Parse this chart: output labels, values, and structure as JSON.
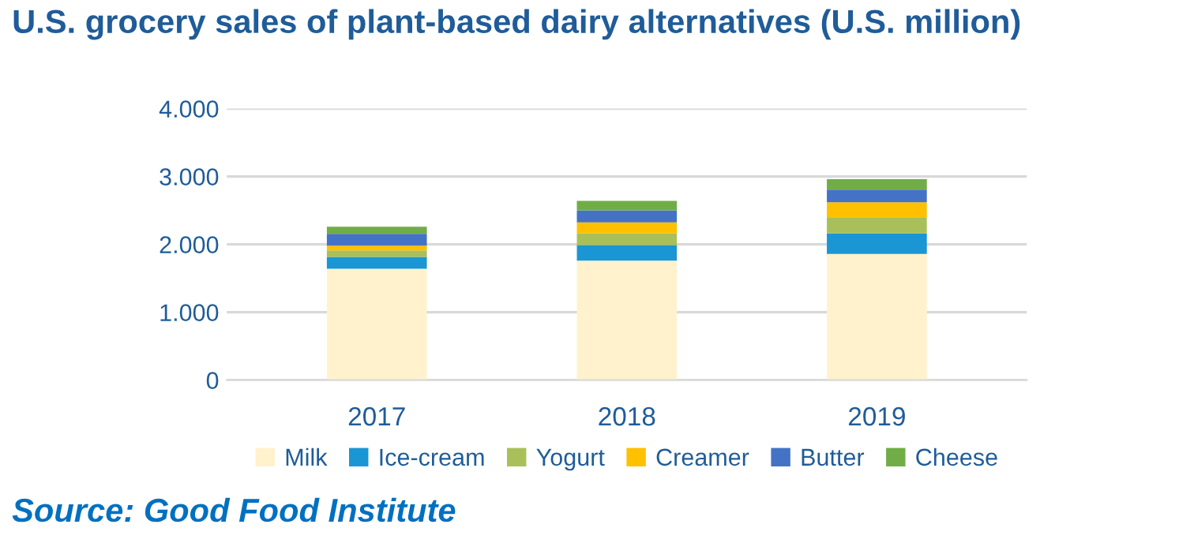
{
  "chart_data": {
    "type": "bar",
    "title": "U.S. grocery sales of plant-based dairy alternatives (U.S. million)",
    "categories": [
      "2017",
      "2018",
      "2019"
    ],
    "stacked": true,
    "series": [
      {
        "name": "Milk",
        "color": "#fff2cc",
        "values": [
          1640,
          1760,
          1860
        ]
      },
      {
        "name": "Ice-cream",
        "color": "#1a96d4",
        "values": [
          175,
          230,
          300
        ]
      },
      {
        "name": "Yogurt",
        "color": "#a9bf5a",
        "values": [
          95,
          170,
          230
        ]
      },
      {
        "name": "Creamer",
        "color": "#ffc000",
        "values": [
          70,
          165,
          230
        ]
      },
      {
        "name": "Butter",
        "color": "#4472c4",
        "values": [
          175,
          175,
          185
        ]
      },
      {
        "name": "Cheese",
        "color": "#70ad47",
        "values": [
          105,
          140,
          155
        ]
      }
    ],
    "ylim": [
      0,
      4000
    ],
    "yticks": [
      0,
      {
        "value": 1000,
        "label": "1.000"
      },
      {
        "value": 2000,
        "label": "2.000"
      },
      {
        "value": 3000,
        "label": "3.000"
      },
      {
        "value": 4000,
        "label": "4.000"
      }
    ],
    "grid": "y",
    "legend": "bottom",
    "annotations": [
      "Source: Good Food Institute"
    ]
  }
}
